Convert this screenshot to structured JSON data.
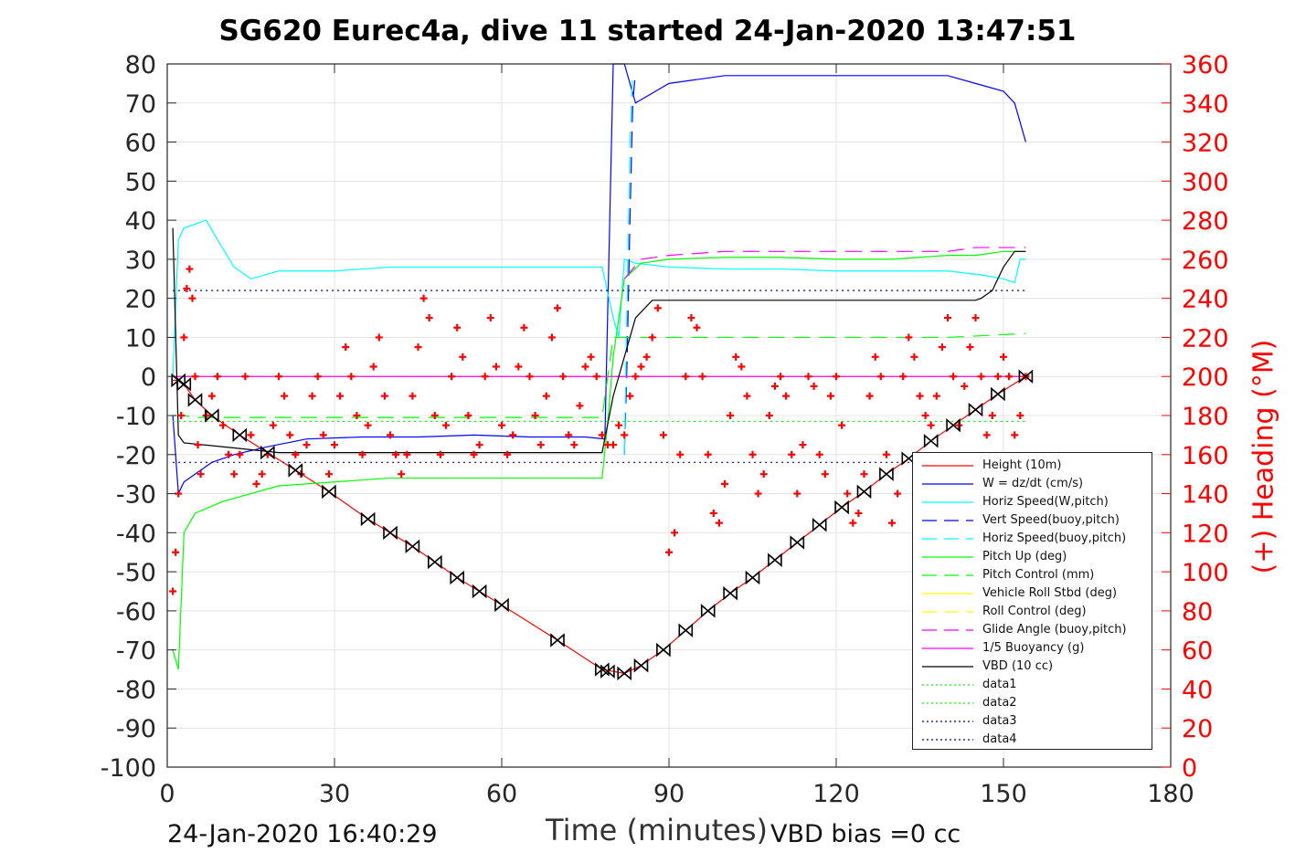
{
  "chart_data": {
    "type": "line",
    "title": "SG620 Eurec4a, dive 11 started 24-Jan-2020 13:47:51",
    "xlabel": "Time (minutes)",
    "ylabel_left": "",
    "ylabel_right": "(+) Heading (°M)",
    "xlim": [
      0,
      180
    ],
    "ylim": [
      -100,
      80
    ],
    "ylim_right": [
      0,
      360
    ],
    "x_ticks": [
      "0",
      "30",
      "60",
      "90",
      "120",
      "150",
      "180"
    ],
    "y_ticks": [
      "80",
      "70",
      "60",
      "50",
      "40",
      "30",
      "20",
      "10",
      "0",
      "-10",
      "-20",
      "-30",
      "-40",
      "-50",
      "-60",
      "-70",
      "-80",
      "-90",
      "-100"
    ],
    "y2_ticks": [
      "360",
      "340",
      "320",
      "300",
      "280",
      "260",
      "240",
      "220",
      "200",
      "180",
      "160",
      "140",
      "120",
      "100",
      "80",
      "60",
      "40",
      "20",
      "0"
    ],
    "grid": true,
    "legend_position": "bottom-right",
    "footer_left": "24-Jan-2020 16:40:29",
    "footer_right": "VBD bias =0 cc",
    "series": [
      {
        "name": "Height (10m)",
        "color": "#ff0000",
        "style": "solid",
        "x": [
          1,
          2,
          3,
          4,
          5,
          8,
          13,
          18,
          23,
          29,
          36,
          40,
          44,
          48,
          52,
          56,
          60,
          70,
          78,
          82,
          85,
          89,
          93,
          97,
          101,
          105,
          109,
          113,
          117,
          121,
          125,
          129,
          133,
          137,
          141,
          145,
          149,
          154
        ],
        "y": [
          -1,
          -1,
          -2,
          -4,
          -6,
          -10,
          -15,
          -19.5,
          -24,
          -29.5,
          -36.5,
          -40,
          -43.5,
          -47.5,
          -51.5,
          -55,
          -58.5,
          -67.5,
          -75,
          -76,
          -74,
          -70,
          -65,
          -60,
          -55.5,
          -51.5,
          -47,
          -42.5,
          -38,
          -33.5,
          -29.5,
          -25,
          -21,
          -16.5,
          -12.5,
          -8.5,
          -4.5,
          0
        ]
      },
      {
        "name": "W = dz/dt (cm/s)",
        "color": "#0000ff",
        "style": "solid",
        "x": [
          1,
          2,
          3,
          5,
          8,
          12,
          18,
          25,
          35,
          45,
          55,
          65,
          75,
          78.5,
          80,
          82,
          84,
          90,
          100,
          110,
          120,
          130,
          140,
          145,
          150,
          152,
          153,
          154
        ],
        "y": [
          -10,
          -30,
          -27,
          -25,
          -22,
          -20,
          -18,
          -16,
          -15.5,
          -15.5,
          -15,
          -15.5,
          -15.5,
          -16,
          80,
          80,
          70,
          75,
          77,
          77,
          77,
          77,
          77,
          75,
          73,
          70,
          65,
          60
        ]
      },
      {
        "name": "Horiz Speed(W,pitch)",
        "color": "#00ffff",
        "style": "solid",
        "x": [
          1,
          2,
          3,
          5,
          7,
          9,
          12,
          15,
          20,
          30,
          40,
          50,
          60,
          70,
          78,
          80,
          81,
          82,
          84,
          90,
          100,
          110,
          120,
          130,
          140,
          146,
          150,
          152,
          153,
          154
        ],
        "y": [
          0,
          35,
          38,
          39,
          40,
          35,
          28,
          25,
          27,
          27,
          28,
          28,
          28,
          28,
          28,
          15,
          10,
          30,
          29,
          28,
          27.5,
          27.5,
          27,
          27,
          27,
          26,
          25,
          24,
          30,
          30
        ]
      },
      {
        "name": "Vert Speed(buoy,pitch)",
        "color": "#0000ff",
        "style": "dashed",
        "x": [
          82,
          82.5,
          83,
          83.5,
          84
        ],
        "y": [
          -20,
          5,
          40,
          70,
          78
        ]
      },
      {
        "name": "Horiz Speed(buoy,pitch)",
        "color": "#00ffff",
        "style": "dashed",
        "x": [
          82,
          82.5,
          83,
          83.5
        ],
        "y": [
          -20,
          20,
          60,
          78
        ]
      },
      {
        "name": "Pitch Up (deg)",
        "color": "#00ff00",
        "style": "solid",
        "x": [
          1,
          2,
          3,
          5,
          10,
          20,
          30,
          40,
          50,
          60,
          70,
          78,
          79,
          80,
          82,
          85,
          90,
          100,
          110,
          120,
          130,
          140,
          145,
          150,
          154
        ],
        "y": [
          -70,
          -75,
          -40,
          -35,
          -32,
          -28,
          -27,
          -26,
          -26,
          -26,
          -26,
          -26,
          -12,
          5,
          25,
          29,
          30,
          30.5,
          30.5,
          30,
          30,
          31,
          31,
          32,
          32
        ]
      },
      {
        "name": "Pitch Control (mm)",
        "color": "#00ff00",
        "style": "dashed",
        "x": [
          1,
          3,
          5,
          20,
          40,
          60,
          78,
          80,
          82,
          100,
          120,
          140,
          154
        ],
        "y": [
          -10,
          -10,
          -10.5,
          -10.5,
          -10.5,
          -10.5,
          -10.5,
          10,
          10,
          10,
          10,
          10,
          11
        ]
      },
      {
        "name": "Vehicle Roll Stbd (deg)",
        "color": "#ffff00",
        "style": "solid",
        "x": [
          1,
          2,
          5,
          10,
          20,
          30,
          40,
          50,
          60,
          70,
          78,
          82,
          90,
          100,
          110,
          120,
          130,
          140,
          150,
          154
        ],
        "y": [
          0,
          0,
          0,
          0,
          0,
          0,
          0,
          0,
          0,
          0,
          0,
          0,
          0,
          0,
          0,
          0,
          0,
          0,
          0,
          0
        ]
      },
      {
        "name": "Roll Control (deg)",
        "color": "#ffff00",
        "style": "dashed",
        "x": [
          1,
          154
        ],
        "y": [
          0,
          0
        ]
      },
      {
        "name": "Glide Angle (buoy,pitch)",
        "color": "#ff00ff",
        "style": "dashed",
        "x": [
          82,
          85,
          90,
          100,
          110,
          120,
          130,
          140,
          145,
          150,
          154
        ],
        "y": [
          25,
          30,
          31,
          32,
          32,
          32,
          32,
          32,
          33,
          33,
          33
        ]
      },
      {
        "name": "1/5 Buoyancy (g)",
        "color": "#ff00ff",
        "style": "solid",
        "x": [
          1,
          154
        ],
        "y": [
          0,
          0
        ]
      },
      {
        "name": "VBD (10 cc)",
        "color": "#000000",
        "style": "solid",
        "x": [
          1,
          2,
          3,
          10,
          20,
          40,
          60,
          78,
          80,
          82,
          84,
          87,
          100,
          120,
          140,
          145,
          146,
          148,
          150,
          152,
          154
        ],
        "y": [
          38,
          -15,
          -17,
          -18,
          -19.5,
          -19.5,
          -19.5,
          -19.5,
          -5,
          5,
          15,
          19.5,
          19.5,
          19.5,
          19.5,
          19.5,
          20,
          22,
          28,
          32,
          32
        ]
      },
      {
        "name": "data1",
        "color": "#00ff00",
        "style": "dotted",
        "x": [
          1,
          154
        ],
        "y": [
          -11.5,
          -11.5
        ]
      },
      {
        "name": "data2",
        "color": "#00ff00",
        "style": "dotted",
        "x": [
          1,
          154
        ],
        "y": [
          -11.5,
          -11.5
        ]
      },
      {
        "name": "data3",
        "color": "#000080",
        "style": "dotted",
        "x": [
          1,
          154
        ],
        "y": [
          22,
          22
        ]
      },
      {
        "name": "data4",
        "color": "#000080",
        "style": "dotted",
        "x": [
          1,
          154
        ],
        "y": [
          -22,
          -22
        ]
      }
    ],
    "heading_series": {
      "name": "(+) Heading (°M)",
      "color": "#ff0000",
      "marker": "+",
      "axis": "right",
      "x": [
        1,
        1.5,
        2,
        2.5,
        3,
        3.5,
        4,
        4.5,
        5,
        5.5,
        6,
        7,
        8,
        9,
        10,
        11,
        12,
        13,
        14,
        15,
        16,
        17,
        18,
        19,
        20,
        21,
        22,
        23,
        24,
        25,
        26,
        27,
        28,
        29,
        30,
        31,
        32,
        33,
        34,
        35,
        36,
        37,
        38,
        39,
        40,
        41,
        42,
        43,
        44,
        45,
        46,
        47,
        48,
        49,
        50,
        51,
        52,
        53,
        54,
        55,
        56,
        57,
        58,
        59,
        60,
        61,
        62,
        63,
        64,
        65,
        66,
        67,
        68,
        69,
        70,
        71,
        72,
        73,
        74,
        75,
        76,
        77,
        78,
        79,
        80,
        81,
        82,
        83,
        84,
        85,
        86,
        87,
        88,
        89,
        90,
        91,
        92,
        93,
        94,
        95,
        96,
        97,
        98,
        99,
        100,
        101,
        102,
        103,
        104,
        105,
        106,
        107,
        108,
        109,
        110,
        111,
        112,
        113,
        114,
        115,
        116,
        117,
        118,
        119,
        120,
        121,
        122,
        123,
        124,
        125,
        126,
        127,
        128,
        129,
        130,
        131,
        132,
        133,
        134,
        135,
        136,
        137,
        138,
        139,
        140,
        141,
        142,
        143,
        144,
        145,
        146,
        147,
        148,
        149,
        150,
        151,
        152,
        153,
        154
      ],
      "y": [
        90,
        110,
        140,
        180,
        220,
        245,
        255,
        240,
        200,
        165,
        150,
        180,
        190,
        200,
        175,
        160,
        150,
        160,
        200,
        170,
        145,
        150,
        160,
        175,
        200,
        190,
        170,
        160,
        150,
        165,
        190,
        200,
        170,
        150,
        165,
        190,
        215,
        200,
        180,
        160,
        175,
        205,
        220,
        190,
        170,
        160,
        150,
        160,
        190,
        215,
        240,
        230,
        180,
        160,
        175,
        200,
        225,
        210,
        180,
        160,
        165,
        200,
        230,
        205,
        175,
        160,
        170,
        205,
        225,
        200,
        180,
        165,
        190,
        220,
        235,
        200,
        170,
        165,
        185,
        205,
        210,
        200,
        170,
        165,
        165,
        175,
        170,
        190,
        200,
        205,
        210,
        220,
        235,
        170,
        110,
        120,
        160,
        200,
        230,
        225,
        200,
        160,
        130,
        125,
        145,
        180,
        210,
        205,
        190,
        160,
        140,
        150,
        180,
        195,
        200,
        190,
        160,
        140,
        165,
        200,
        195,
        160,
        150,
        190,
        200,
        175,
        140,
        125,
        130,
        150,
        190,
        210,
        200,
        160,
        125,
        140,
        200,
        220,
        210,
        190,
        180,
        175,
        190,
        215,
        230,
        200,
        175,
        195,
        215,
        230,
        200,
        170,
        180,
        200,
        210,
        200,
        170,
        180,
        200
      ]
    },
    "marker_series": {
      "name": "",
      "color": "#000000",
      "marker": "bowtie",
      "x": [
        2,
        3,
        5,
        8,
        13,
        18,
        23,
        29,
        36,
        40,
        44,
        48,
        52,
        56,
        60,
        70,
        78,
        79,
        82,
        85,
        89,
        93,
        97,
        101,
        105,
        109,
        113,
        117,
        121,
        125,
        129,
        133,
        137,
        141,
        145,
        149,
        154
      ],
      "y": [
        -1,
        -2,
        -6,
        -10,
        -15,
        -19.5,
        -24,
        -29.5,
        -36.5,
        -40,
        -43.5,
        -47.5,
        -51.5,
        -55,
        -58.5,
        -67.5,
        -75,
        -75.5,
        -76,
        -74,
        -70,
        -65,
        -60,
        -55.5,
        -51.5,
        -47,
        -42.5,
        -38,
        -33.5,
        -29.5,
        -25,
        -21,
        -16.5,
        -12.5,
        -8.5,
        -4.5,
        0
      ]
    }
  }
}
